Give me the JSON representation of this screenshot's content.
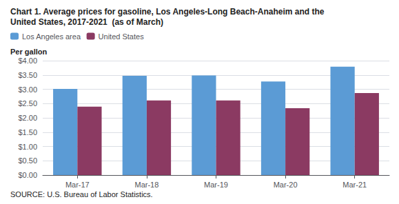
{
  "chart_data": {
    "type": "bar",
    "title": "Chart 1. Average prices for gasoline, Los Angeles-Long Beach-Anaheim and the\nUnited States, 2017-2021  (as of March)",
    "ylabel": "Per gallon",
    "source": "SOURCE: U.S. Bureau of Labor Statistics.",
    "categories": [
      "Mar-17",
      "Mar-18",
      "Mar-19",
      "Mar-20",
      "Mar-21"
    ],
    "series": [
      {
        "name": "Los Angeles area",
        "color": "#5B9BD5",
        "values": [
          3.01,
          3.47,
          3.48,
          3.27,
          3.79
        ]
      },
      {
        "name": "United States",
        "color": "#8B3A62",
        "values": [
          2.39,
          2.61,
          2.61,
          2.34,
          2.87
        ]
      }
    ],
    "ylim": [
      0,
      4.0
    ],
    "yticks": [
      {
        "value": 0.0,
        "label": "$0.00"
      },
      {
        "value": 0.5,
        "label": "$0.50"
      },
      {
        "value": 1.0,
        "label": "$1.00"
      },
      {
        "value": 1.5,
        "label": "$1.50"
      },
      {
        "value": 2.0,
        "label": "$2.00"
      },
      {
        "value": 2.5,
        "label": "$2.50"
      },
      {
        "value": 3.0,
        "label": "$3.00"
      },
      {
        "value": 3.5,
        "label": "$3.50"
      },
      {
        "value": 4.0,
        "label": "$4.00"
      }
    ],
    "grid": true,
    "legend": "upper left"
  }
}
